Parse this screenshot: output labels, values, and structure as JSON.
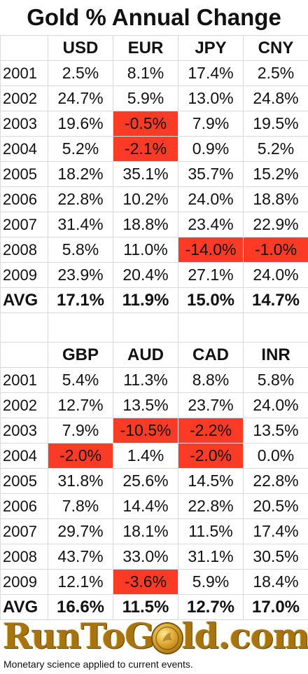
{
  "title": "Gold % Annual Change",
  "chart_data": [
    {
      "type": "table",
      "columns": [
        "USD",
        "EUR",
        "JPY",
        "CNY"
      ],
      "rows": [
        {
          "label": "2001",
          "values": [
            "2.5%",
            "8.1%",
            "17.4%",
            "2.5%"
          ],
          "negative": [
            false,
            false,
            false,
            false
          ]
        },
        {
          "label": "2002",
          "values": [
            "24.7%",
            "5.9%",
            "13.0%",
            "24.8%"
          ],
          "negative": [
            false,
            false,
            false,
            false
          ]
        },
        {
          "label": "2003",
          "values": [
            "19.6%",
            "-0.5%",
            "7.9%",
            "19.5%"
          ],
          "negative": [
            false,
            true,
            false,
            false
          ]
        },
        {
          "label": "2004",
          "values": [
            "5.2%",
            "-2.1%",
            "0.9%",
            "5.2%"
          ],
          "negative": [
            false,
            true,
            false,
            false
          ]
        },
        {
          "label": "2005",
          "values": [
            "18.2%",
            "35.1%",
            "35.7%",
            "15.2%"
          ],
          "negative": [
            false,
            false,
            false,
            false
          ]
        },
        {
          "label": "2006",
          "values": [
            "22.8%",
            "10.2%",
            "24.0%",
            "18.8%"
          ],
          "negative": [
            false,
            false,
            false,
            false
          ]
        },
        {
          "label": "2007",
          "values": [
            "31.4%",
            "18.8%",
            "23.4%",
            "22.9%"
          ],
          "negative": [
            false,
            false,
            false,
            false
          ]
        },
        {
          "label": "2008",
          "values": [
            "5.8%",
            "11.0%",
            "-14.0%",
            "-1.0%"
          ],
          "negative": [
            false,
            false,
            true,
            true
          ]
        },
        {
          "label": "2009",
          "values": [
            "23.9%",
            "20.4%",
            "27.1%",
            "24.0%"
          ],
          "negative": [
            false,
            false,
            false,
            false
          ]
        }
      ],
      "avg": {
        "label": "AVG",
        "values": [
          "17.1%",
          "11.9%",
          "15.0%",
          "14.7%"
        ]
      }
    },
    {
      "type": "table",
      "columns": [
        "GBP",
        "AUD",
        "CAD",
        "INR"
      ],
      "rows": [
        {
          "label": "2001",
          "values": [
            "5.4%",
            "11.3%",
            "8.8%",
            "5.8%"
          ],
          "negative": [
            false,
            false,
            false,
            false
          ]
        },
        {
          "label": "2002",
          "values": [
            "12.7%",
            "13.5%",
            "23.7%",
            "24.0%"
          ],
          "negative": [
            false,
            false,
            false,
            false
          ]
        },
        {
          "label": "2003",
          "values": [
            "7.9%",
            "-10.5%",
            "-2.2%",
            "13.5%"
          ],
          "negative": [
            false,
            true,
            true,
            false
          ]
        },
        {
          "label": "2004",
          "values": [
            "-2.0%",
            "1.4%",
            "-2.0%",
            "0.0%"
          ],
          "negative": [
            true,
            false,
            true,
            false
          ]
        },
        {
          "label": "2005",
          "values": [
            "31.8%",
            "25.6%",
            "14.5%",
            "22.8%"
          ],
          "negative": [
            false,
            false,
            false,
            false
          ]
        },
        {
          "label": "2006",
          "values": [
            "7.8%",
            "14.4%",
            "22.8%",
            "20.5%"
          ],
          "negative": [
            false,
            false,
            false,
            false
          ]
        },
        {
          "label": "2007",
          "values": [
            "29.7%",
            "18.1%",
            "11.5%",
            "17.4%"
          ],
          "negative": [
            false,
            false,
            false,
            false
          ]
        },
        {
          "label": "2008",
          "values": [
            "43.7%",
            "33.0%",
            "31.1%",
            "30.5%"
          ],
          "negative": [
            false,
            false,
            false,
            false
          ]
        },
        {
          "label": "2009",
          "values": [
            "12.1%",
            "-3.6%",
            "5.9%",
            "18.4%"
          ],
          "negative": [
            false,
            true,
            false,
            false
          ]
        }
      ],
      "avg": {
        "label": "AVG",
        "values": [
          "16.6%",
          "11.5%",
          "12.7%",
          "17.0%"
        ]
      }
    }
  ],
  "colors": {
    "negative_highlight": "#fb3b26",
    "logo_gold": "#a87410",
    "grid_line": "#dadada"
  },
  "logo": {
    "text": "RunToGold.com",
    "tagline": "Monetary science applied to current events."
  }
}
